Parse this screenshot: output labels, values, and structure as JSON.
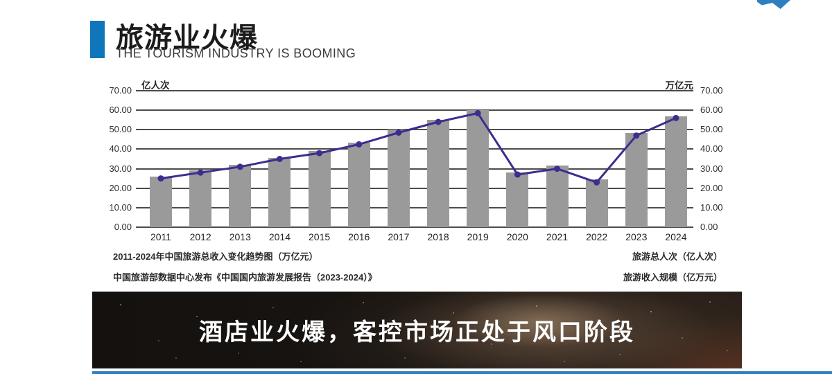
{
  "header": {
    "title_cn": "旅游业火爆",
    "title_en": "THE TOURISM INDUSTRY IS BOOMING"
  },
  "colors": {
    "accent_blue": "#0f76bb",
    "bar_gray": "#9a9a9a",
    "line_purple": "#3f2c8e",
    "gridline": "#4c4c4c",
    "bottom_strip_blue": "#2e7fc0",
    "banner_text": "#ffffff"
  },
  "chart_data": {
    "type": "bar",
    "title": "2011-2024年中国旅游总收入变化趋势图（万亿元）",
    "categories": [
      "2011",
      "2012",
      "2013",
      "2014",
      "2015",
      "2016",
      "2017",
      "2018",
      "2019",
      "2020",
      "2021",
      "2022",
      "2023",
      "2024"
    ],
    "series": [
      {
        "name": "旅游总人次（亿人次）",
        "kind": "bar",
        "values": [
          26,
          29,
          32,
          35.5,
          39,
          43.5,
          50,
          55,
          60,
          28,
          31.5,
          24.5,
          48.5,
          57
        ]
      },
      {
        "name": "旅游收入规模（亿万元）",
        "kind": "line",
        "values": [
          25,
          28,
          31,
          35,
          38,
          42.5,
          48.5,
          54,
          58.5,
          27,
          30,
          23,
          47,
          56
        ]
      }
    ],
    "left_axis": {
      "unit": "亿人次",
      "min": 0,
      "max": 70,
      "step": 10
    },
    "right_axis": {
      "unit": "万亿元",
      "min": 0,
      "max": 70,
      "step": 10
    },
    "grid": true,
    "legend_position": "bottom-right"
  },
  "footer": {
    "source": "中国旅游部数据中心发布《中国国内旅游发展报告（2023-2024）》"
  },
  "banner": {
    "text": "酒店业火爆，客控市场正处于风口阶段"
  }
}
